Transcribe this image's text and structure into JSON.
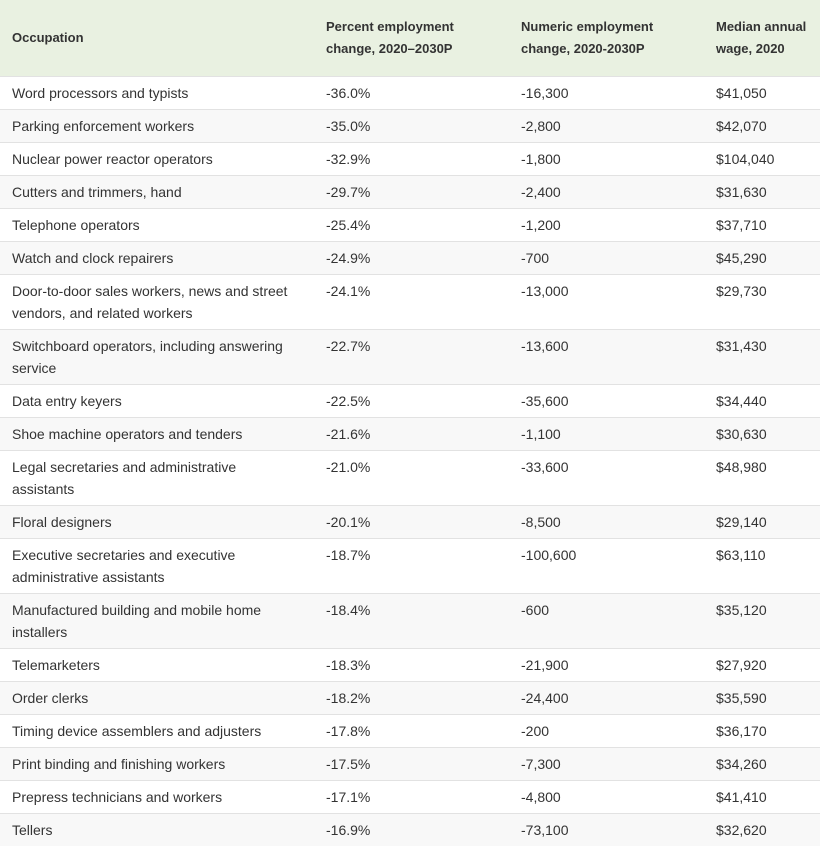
{
  "table": {
    "header": [
      "Occupation",
      "Percent employment change, 2020–2030P",
      "Numeric employment change, 2020-2030P",
      "Median annual wage, 2020"
    ],
    "rows": [
      [
        "Word processors and typists",
        "-36.0%",
        "-16,300",
        "$41,050"
      ],
      [
        "Parking enforcement workers",
        "-35.0%",
        "-2,800",
        "$42,070"
      ],
      [
        "Nuclear power reactor operators",
        "-32.9%",
        "-1,800",
        "$104,040"
      ],
      [
        "Cutters and trimmers, hand",
        "-29.7%",
        "-2,400",
        "$31,630"
      ],
      [
        "Telephone operators",
        "-25.4%",
        "-1,200",
        "$37,710"
      ],
      [
        "Watch and clock repairers",
        "-24.9%",
        "-700",
        "$45,290"
      ],
      [
        "Door-to-door sales workers, news and street vendors, and related workers",
        "-24.1%",
        "-13,000",
        "$29,730"
      ],
      [
        "Switchboard operators, including answering service",
        "-22.7%",
        "-13,600",
        "$31,430"
      ],
      [
        "Data entry keyers",
        "-22.5%",
        "-35,600",
        "$34,440"
      ],
      [
        "Shoe machine operators and tenders",
        "-21.6%",
        "-1,100",
        "$30,630"
      ],
      [
        "Legal secretaries and administrative assistants",
        "-21.0%",
        "-33,600",
        "$48,980"
      ],
      [
        "Floral designers",
        "-20.1%",
        "-8,500",
        "$29,140"
      ],
      [
        "Executive secretaries and executive administrative assistants",
        "-18.7%",
        "-100,600",
        "$63,110"
      ],
      [
        "Manufactured building and mobile home installers",
        "-18.4%",
        "-600",
        "$35,120"
      ],
      [
        "Telemarketers",
        "-18.3%",
        "-21,900",
        "$27,920"
      ],
      [
        "Order clerks",
        "-18.2%",
        "-24,400",
        "$35,590"
      ],
      [
        "Timing device assemblers and adjusters",
        "-17.8%",
        "-200",
        "$36,170"
      ],
      [
        "Print binding and finishing workers",
        "-17.5%",
        "-7,300",
        "$34,260"
      ],
      [
        "Prepress technicians and workers",
        "-17.1%",
        "-4,800",
        "$41,410"
      ],
      [
        "Tellers",
        "-16.9%",
        "-73,100",
        "$32,620"
      ]
    ]
  }
}
